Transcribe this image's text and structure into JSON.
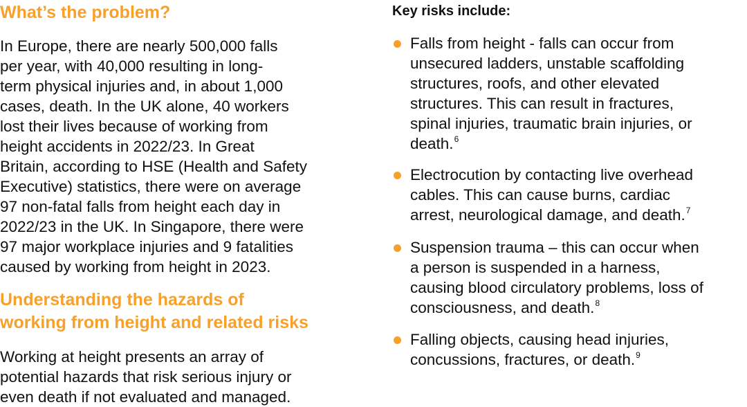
{
  "accent_color": "#F7A02A",
  "left": {
    "heading1": "What’s the problem?",
    "paragraph1": [
      "In Europe, there are nearly 500,000 falls",
      "per year, with 40,000 resulting in long-",
      "term physical injuries and, in about 1,000",
      "cases, death. In the UK alone, 40 workers",
      "lost their lives because of working from",
      "height accidents in 2022/23. In Great",
      "Britain, according to HSE (Health and Safety",
      "Executive) statistics, there were on average",
      "97 non-fatal falls from height each day in",
      "2022/23 in the UK. In Singapore, there were",
      "97 major workplace injuries and 9 fatalities",
      "caused by working from height in 2023."
    ],
    "heading2": [
      "Understanding the hazards of",
      "working from height and related risks"
    ],
    "paragraph2": [
      "Working at height presents an array of",
      "potential hazards that risk serious injury or",
      "even death if not evaluated and managed."
    ]
  },
  "right": {
    "heading": "Key risks include:",
    "bullet_icon": "orange-dot",
    "items": [
      {
        "lines": [
          "Falls from height - falls can occur from",
          "unsecured ladders, unstable scaffolding",
          "structures, roofs, and other elevated",
          "structures. This can result in fractures,",
          "spinal injuries, traumatic brain injuries, or",
          "death."
        ],
        "ref": "6"
      },
      {
        "lines": [
          "Electrocution by contacting live overhead",
          "cables. This can cause burns, cardiac",
          "arrest, neurological damage, and death."
        ],
        "ref": "7"
      },
      {
        "lines": [
          "Suspension trauma – this can occur when",
          "a person is suspended in a harness,",
          "causing blood circulatory problems, loss of",
          "consciousness, and death."
        ],
        "ref": "8"
      },
      {
        "lines": [
          "Falling objects, causing head injuries,",
          "concussions, fractures, or death."
        ],
        "ref": "9"
      }
    ]
  }
}
